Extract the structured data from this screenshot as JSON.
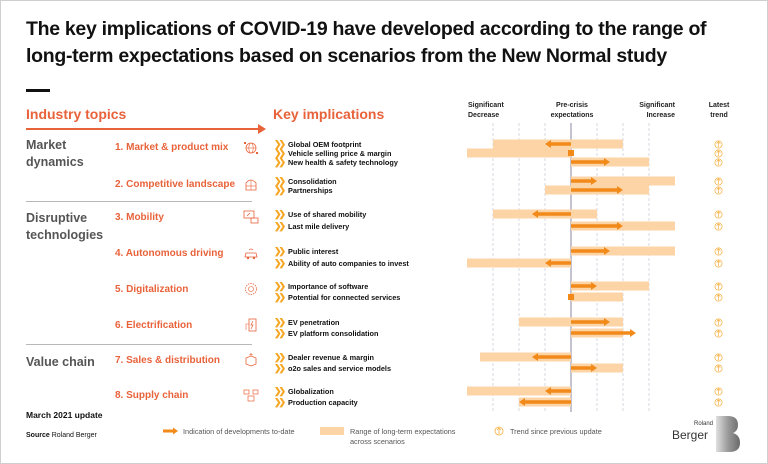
{
  "title": "The key implications of COVID-19 have developed according to the range of long-term expectations based on scenarios from the New Normal study",
  "headers": {
    "industry_topics": "Industry topics",
    "key_implications": "Key implications",
    "significant_decrease": [
      "Significant",
      "Decrease"
    ],
    "pre_crisis": [
      "Pre-crisis",
      "expectations"
    ],
    "significant_increase": [
      "Significant",
      "Increase"
    ],
    "latest_trend": [
      "Latest",
      "trend"
    ]
  },
  "categories": [
    {
      "label": [
        "Market",
        "dynamics"
      ]
    },
    {
      "label": [
        "Disruptive",
        "technologies"
      ]
    },
    {
      "label": [
        "Value chain"
      ]
    }
  ],
  "topics": [
    {
      "label": "1. Market & product mix",
      "icon": "globe-icon"
    },
    {
      "label": "2. Competitive landscape",
      "icon": "building-icon"
    },
    {
      "label": "3. Mobility",
      "icon": "shared-mobility-icon"
    },
    {
      "label": "4. Autonomous driving",
      "icon": "autonomous-car-icon"
    },
    {
      "label": "5. Digitalization",
      "icon": "digital-globe-icon"
    },
    {
      "label": "6. Electrification",
      "icon": "charging-station-icon"
    },
    {
      "label": "7. Sales & distribution",
      "icon": "box-icon"
    },
    {
      "label": "8. Supply chain",
      "icon": "supply-chain-icon"
    }
  ],
  "footer": {
    "update": "March 2021 update",
    "source_label": "Source",
    "source_value": "Roland Berger",
    "legend_arrow": "Indication of developments to-date",
    "legend_range": [
      "Range of long-term expectations",
      "across scenarios"
    ],
    "legend_trend": "Trend since previous update",
    "logo_small": "Roland",
    "logo_big": "Berger"
  },
  "colors": {
    "accent": "#e8623a",
    "arrow": "#f28a1a",
    "range": "#fdd4a6",
    "chevron": "#f5a623",
    "trend": "#f5b041"
  },
  "chart_data": {
    "type": "range-bar-with-arrows",
    "title": "Key implications vs. pre-crisis expectations",
    "xlabel_left": "Significant Decrease",
    "xlabel_center": "Pre-crisis expectations",
    "xlabel_right": "Significant Increase",
    "xlim": [
      -4,
      4
    ],
    "grid": [
      -3,
      -2,
      -1,
      0,
      1,
      2,
      3
    ],
    "items": [
      {
        "topic": 1,
        "label": "Global OEM footprint",
        "range": [
          -3,
          2
        ],
        "arrow": -1
      },
      {
        "topic": 1,
        "label": "Vehicle selling price & margin",
        "range": [
          -4,
          0
        ],
        "arrow": 0
      },
      {
        "topic": 1,
        "label": "New health & safety technology",
        "range": [
          0,
          3
        ],
        "arrow": 1.5
      },
      {
        "topic": 2,
        "label": "Consolidation",
        "range": [
          0,
          4
        ],
        "arrow": 1
      },
      {
        "topic": 2,
        "label": "Partnerships",
        "range": [
          -1,
          3
        ],
        "arrow": 2
      },
      {
        "topic": 3,
        "label": "Use of shared mobility",
        "range": [
          -3,
          1
        ],
        "arrow": -1.5
      },
      {
        "topic": 3,
        "label": "Last mile delivery",
        "range": [
          0,
          4
        ],
        "arrow": 2
      },
      {
        "topic": 4,
        "label": "Public interest",
        "range": [
          0,
          4
        ],
        "arrow": 1.5
      },
      {
        "topic": 4,
        "label": "Ability of auto companies to invest",
        "range": [
          -4,
          0
        ],
        "arrow": -1
      },
      {
        "topic": 5,
        "label": "Importance of software",
        "range": [
          0,
          3
        ],
        "arrow": 1
      },
      {
        "topic": 5,
        "label": "Potential for connected services",
        "range": [
          0,
          2
        ],
        "arrow": 0
      },
      {
        "topic": 6,
        "label": "EV penetration",
        "range": [
          -2,
          2
        ],
        "arrow": 1.5
      },
      {
        "topic": 6,
        "label": "EV platform consolidation",
        "range": [
          0,
          2
        ],
        "arrow": 2.5
      },
      {
        "topic": 7,
        "label": "Dealer revenue & margin",
        "range": [
          -3.5,
          0
        ],
        "arrow": -1.5
      },
      {
        "topic": 7,
        "label": "o2o sales and service models",
        "range": [
          0,
          2
        ],
        "arrow": 1
      },
      {
        "topic": 8,
        "label": "Globalization",
        "range": [
          -4,
          0
        ],
        "arrow": -1
      },
      {
        "topic": 8,
        "label": "Production capacity",
        "range": [
          -2,
          0
        ],
        "arrow": -2
      }
    ],
    "legend": [
      "Indication of developments to-date",
      "Range of long-term expectations across scenarios",
      "Trend since previous update"
    ]
  }
}
